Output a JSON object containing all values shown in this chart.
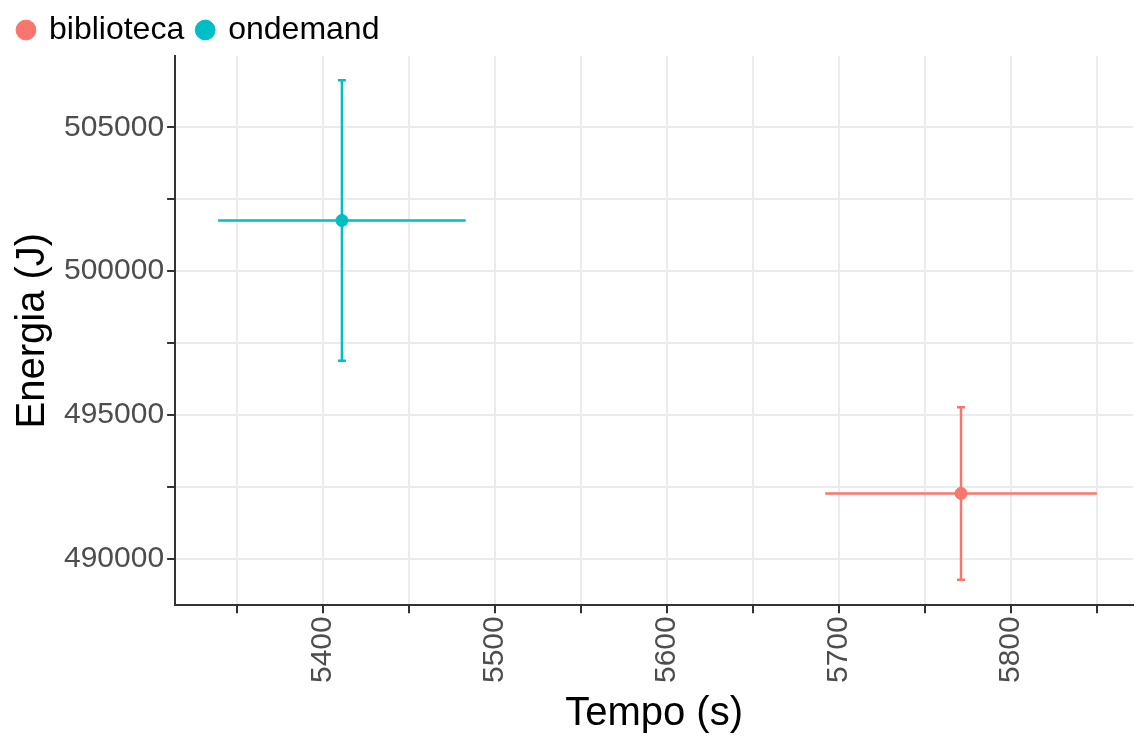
{
  "chart_data": {
    "type": "scatter",
    "xlabel": "Tempo (s)",
    "ylabel": "Energia (J)",
    "xlim": [
      5314,
      5871
    ],
    "ylim": [
      488380,
      507480
    ],
    "xticks": [
      {
        "value": 5350,
        "label": null
      },
      5400,
      {
        "value": 5450,
        "label": null
      },
      5500,
      {
        "value": 5550,
        "label": null
      },
      5600,
      {
        "value": 5650,
        "label": null
      },
      5700,
      {
        "value": 5750,
        "label": null
      },
      5800,
      {
        "value": 5850,
        "label": null
      }
    ],
    "yticks": [
      490000,
      {
        "value": 492500,
        "label": null
      },
      495000,
      {
        "value": 497500,
        "label": null
      },
      500000,
      {
        "value": 502500,
        "label": null
      },
      505000
    ],
    "grid": true,
    "legend": "top left",
    "marker": "circle",
    "series": [
      {
        "name": "biblioteca",
        "color": "#f8766d",
        "x": [
          5771
        ],
        "values": [
          492270
        ],
        "errors": [
          3000
        ],
        "xerrors": [
          79
        ]
      },
      {
        "name": "ondemand",
        "color": "#00bfc4",
        "x": [
          5411
        ],
        "values": [
          501760
        ],
        "errors": [
          4880
        ],
        "xerrors": [
          72
        ]
      }
    ]
  }
}
